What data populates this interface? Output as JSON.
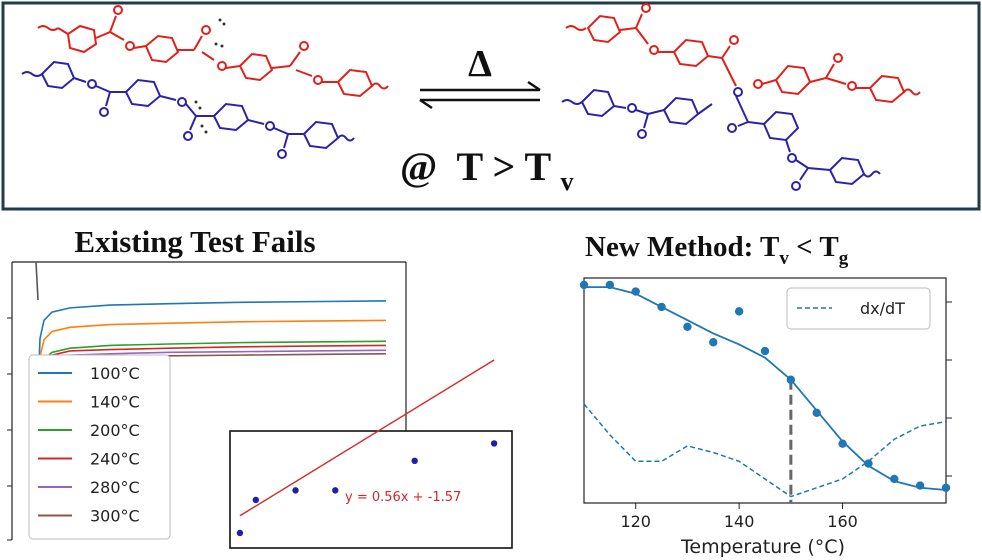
{
  "colors": {
    "polymer_a": "#e0201c",
    "polymer_b": "#2b22a8",
    "frame": "#1f3b4d",
    "line_100": "#1f77b4",
    "line_140": "#ff7f0e",
    "line_200": "#2ca02c",
    "line_240": "#d62728",
    "line_280": "#9467bd",
    "line_300": "#8c564b",
    "fit_line": "#d62728",
    "fit_points": "#1f1fa8",
    "method_curve": "#1f77b4",
    "marker_dashed": "#666666"
  },
  "scheme": {
    "arrow_symbol": "Δ",
    "condition_prefix": "@",
    "condition_main": "T > T",
    "condition_sub": "v"
  },
  "left_panel": {
    "title": "Existing Test Fails"
  },
  "right_panel": {
    "title_main": "New Method: T",
    "title_sub_v": "v",
    "title_mid": " < T",
    "title_sub_g": "g"
  },
  "chart_data": [
    {
      "type": "line",
      "title": "Existing Test Fails",
      "xlabel": "",
      "ylabel": "",
      "grid": false,
      "legend_position": "left",
      "series": [
        {
          "name": "100°C",
          "color": "#1f77b4",
          "shape": [
            0.92,
            0.55,
            0.42,
            0.36,
            0.33,
            0.31,
            0.3,
            0.29,
            0.285,
            0.28
          ]
        },
        {
          "name": "140°C",
          "color": "#ff7f0e",
          "shape": [
            0.94,
            0.68,
            0.56,
            0.5,
            0.47,
            0.45,
            0.44,
            0.43,
            0.425,
            0.42
          ]
        },
        {
          "name": "200°C",
          "color": "#2ca02c",
          "shape": [
            0.97,
            0.8,
            0.7,
            0.65,
            0.62,
            0.6,
            0.59,
            0.58,
            0.575,
            0.57
          ]
        },
        {
          "name": "240°C",
          "color": "#d62728",
          "shape": [
            0.97,
            0.81,
            0.72,
            0.67,
            0.64,
            0.63,
            0.62,
            0.61,
            0.605,
            0.6
          ]
        },
        {
          "name": "280°C",
          "color": "#9467bd",
          "shape": [
            0.98,
            0.82,
            0.73,
            0.69,
            0.67,
            0.66,
            0.65,
            0.645,
            0.64,
            0.635
          ]
        },
        {
          "name": "300°C",
          "color": "#8c564b",
          "shape": [
            0.98,
            0.83,
            0.74,
            0.7,
            0.69,
            0.68,
            0.675,
            0.67,
            0.665,
            0.66
          ]
        }
      ]
    },
    {
      "type": "scatter",
      "title": "",
      "annotation": "y = 0.56x + -1.57",
      "fit": {
        "slope": 0.56,
        "intercept": -1.57
      },
      "x": [
        0.3,
        0.5,
        1.0,
        1.5,
        2.5,
        3.5
      ],
      "y": [
        -1.55,
        -1.17,
        -1.06,
        -1.06,
        -0.72,
        -0.52
      ],
      "xlim": [
        0.2,
        3.7
      ],
      "ylim": [
        -1.7,
        -0.4
      ]
    },
    {
      "type": "line",
      "title": "New Method: Tv < Tg",
      "xlabel": "Temperature (°C)",
      "ylabel": "",
      "xlim": [
        110,
        180
      ],
      "xticks": [
        120,
        140,
        160
      ],
      "ylim": [
        0,
        1
      ],
      "grid": false,
      "legend_position": "top-right",
      "points": {
        "x": [
          110,
          115,
          120,
          125,
          130,
          135,
          140,
          145,
          150,
          155,
          160,
          165,
          170,
          175,
          180
        ],
        "y": [
          0.98,
          0.98,
          0.95,
          0.88,
          0.79,
          0.72,
          0.86,
          0.68,
          0.55,
          0.4,
          0.26,
          0.17,
          0.1,
          0.07,
          0.06
        ]
      },
      "fit_curve": {
        "x": [
          110,
          115,
          120,
          125,
          130,
          135,
          140,
          145,
          150,
          155,
          160,
          165,
          170,
          175,
          180
        ],
        "y": [
          0.97,
          0.97,
          0.94,
          0.88,
          0.82,
          0.76,
          0.71,
          0.65,
          0.55,
          0.41,
          0.27,
          0.16,
          0.09,
          0.06,
          0.05
        ]
      },
      "dashed_series": {
        "name": "dx/dT",
        "x": [
          110,
          115,
          120,
          125,
          130,
          135,
          140,
          145,
          150,
          155,
          160,
          165,
          170,
          175,
          180
        ],
        "y": [
          0.44,
          0.3,
          0.18,
          0.18,
          0.25,
          0.22,
          0.18,
          0.1,
          0.02,
          0.06,
          0.1,
          0.18,
          0.28,
          0.34,
          0.36
        ]
      },
      "marker_x": 150
    }
  ]
}
